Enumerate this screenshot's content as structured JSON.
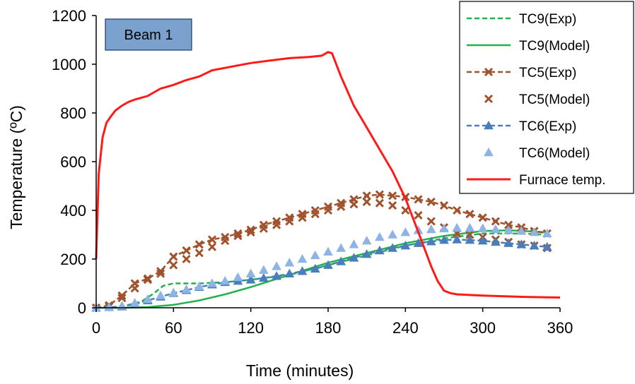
{
  "chart_data": {
    "type": "line",
    "annotation": "Beam 1",
    "xlabel": "Time (minutes)",
    "ylabel": "Temperature (ºC)",
    "xlim": [
      0,
      360
    ],
    "ylim": [
      0,
      1200
    ],
    "xticks": [
      0,
      60,
      120,
      180,
      240,
      300,
      360
    ],
    "yticks": [
      0,
      200,
      400,
      600,
      800,
      1000,
      1200
    ],
    "grid": false,
    "legend_position": "top-right",
    "series": [
      {
        "name": "TC9(Exp)",
        "color": "#22b14c",
        "style": "dashed",
        "marker": "none",
        "x": [
          0,
          20,
          35,
          45,
          52,
          60,
          70,
          80,
          100,
          120,
          150,
          180,
          210,
          240,
          270,
          300,
          330,
          350
        ],
        "y": [
          0,
          5,
          25,
          60,
          90,
          100,
          100,
          100,
          105,
          115,
          135,
          175,
          215,
          255,
          285,
          305,
          305,
          300
        ]
      },
      {
        "name": "TC9(Model)",
        "color": "#22b14c",
        "style": "solid",
        "marker": "none",
        "x": [
          0,
          20,
          40,
          60,
          80,
          100,
          120,
          150,
          180,
          210,
          240,
          270,
          300,
          320,
          350
        ],
        "y": [
          0,
          0,
          3,
          12,
          30,
          55,
          85,
          135,
          185,
          225,
          265,
          295,
          315,
          318,
          310
        ]
      },
      {
        "name": "TC5(Exp)",
        "color": "#a0522d",
        "style": "dashed",
        "marker": "x",
        "x": [
          0,
          10,
          20,
          30,
          40,
          50,
          60,
          70,
          80,
          90,
          100,
          110,
          120,
          130,
          140,
          150,
          160,
          170,
          180,
          190,
          200,
          210,
          220,
          230,
          240,
          250,
          260,
          270,
          280,
          290,
          300,
          310,
          320,
          330,
          340,
          350
        ],
        "y": [
          0,
          10,
          50,
          100,
          120,
          150,
          210,
          235,
          260,
          280,
          290,
          305,
          320,
          340,
          355,
          370,
          385,
          400,
          415,
          430,
          445,
          460,
          465,
          460,
          455,
          445,
          435,
          420,
          400,
          385,
          370,
          355,
          340,
          330,
          315,
          305
        ]
      },
      {
        "name": "TC5(Model)",
        "color": "#a0522d",
        "style": "none",
        "marker": "x",
        "x": [
          0,
          10,
          20,
          30,
          40,
          50,
          60,
          70,
          80,
          90,
          100,
          110,
          120,
          130,
          140,
          150,
          160,
          170,
          180,
          190,
          200,
          210,
          220,
          230,
          240,
          250,
          260,
          270,
          280,
          290,
          300,
          310,
          320,
          330,
          340,
          350
        ],
        "y": [
          0,
          5,
          40,
          80,
          115,
          140,
          175,
          200,
          225,
          250,
          275,
          295,
          310,
          325,
          340,
          355,
          370,
          385,
          400,
          415,
          425,
          435,
          430,
          420,
          400,
          380,
          355,
          330,
          305,
          300,
          290,
          280,
          270,
          260,
          255,
          245
        ]
      },
      {
        "name": "TC6(Exp)",
        "color": "#4a7ebb",
        "style": "dashed",
        "marker": "triangle",
        "x": [
          0,
          10,
          20,
          30,
          40,
          50,
          60,
          70,
          80,
          90,
          100,
          110,
          120,
          130,
          140,
          150,
          160,
          170,
          180,
          190,
          200,
          210,
          220,
          230,
          240,
          250,
          260,
          270,
          280,
          290,
          300,
          310,
          320,
          330,
          340,
          350
        ],
        "y": [
          0,
          2,
          5,
          15,
          30,
          45,
          60,
          72,
          85,
          95,
          105,
          110,
          115,
          122,
          130,
          140,
          150,
          160,
          175,
          190,
          205,
          220,
          235,
          245,
          255,
          265,
          272,
          278,
          280,
          278,
          275,
          270,
          265,
          260,
          255,
          250
        ]
      },
      {
        "name": "TC6(Model)",
        "color": "#8eb4e3",
        "style": "none",
        "marker": "triangle",
        "x": [
          0,
          10,
          20,
          30,
          40,
          50,
          60,
          70,
          80,
          90,
          100,
          110,
          120,
          130,
          140,
          150,
          160,
          170,
          180,
          190,
          200,
          210,
          220,
          230,
          240,
          250,
          260,
          270,
          280,
          290,
          300,
          310,
          320,
          330,
          340,
          350
        ],
        "y": [
          0,
          2,
          8,
          20,
          35,
          50,
          62,
          75,
          88,
          100,
          110,
          125,
          140,
          155,
          170,
          185,
          200,
          215,
          230,
          245,
          260,
          275,
          290,
          300,
          310,
          318,
          322,
          325,
          328,
          328,
          326,
          322,
          318,
          315,
          310,
          305
        ]
      },
      {
        "name": "Furnace temp.",
        "color": "#ff1a1a",
        "style": "solid",
        "marker": "none",
        "x": [
          0,
          2,
          5,
          8,
          12,
          15,
          20,
          25,
          30,
          40,
          50,
          60,
          70,
          80,
          90,
          100,
          110,
          120,
          135,
          150,
          165,
          175,
          180,
          183,
          190,
          200,
          210,
          220,
          230,
          240,
          250,
          260,
          265,
          270,
          275,
          280,
          300,
          330,
          360
        ],
        "y": [
          200,
          550,
          700,
          760,
          790,
          810,
          830,
          845,
          855,
          870,
          900,
          915,
          935,
          950,
          975,
          985,
          995,
          1005,
          1015,
          1025,
          1030,
          1035,
          1050,
          1045,
          950,
          830,
          740,
          650,
          560,
          450,
          310,
          170,
          110,
          70,
          60,
          55,
          50,
          45,
          42
        ]
      }
    ]
  }
}
